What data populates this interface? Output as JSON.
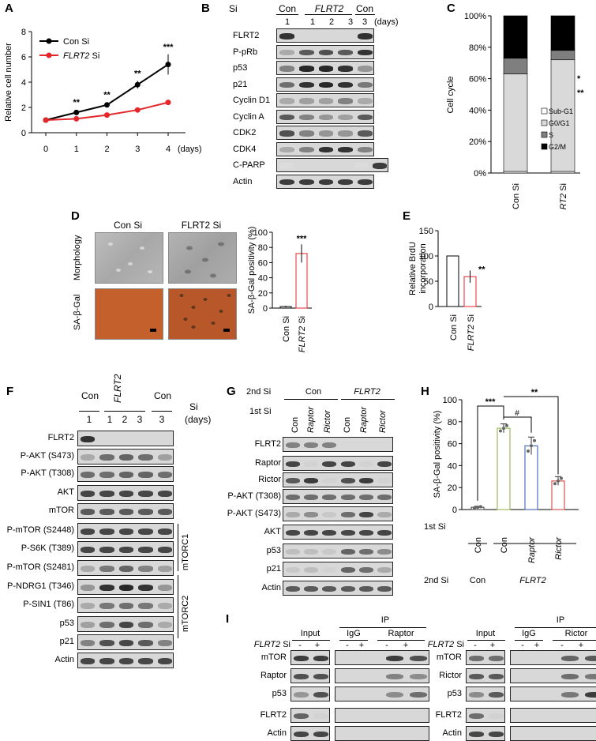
{
  "panels": {
    "A": "A",
    "B": "B",
    "C": "C",
    "D": "D",
    "E": "E",
    "F": "F",
    "G": "G",
    "H": "H",
    "I": "I"
  },
  "panelA": {
    "ylabel": "Relative cell number",
    "xunit": "(days)",
    "legend": [
      "Con Si",
      "FLRT2 Si"
    ],
    "legend_italic_part": "FLRT2",
    "x_ticks": [
      "0",
      "1",
      "2",
      "3",
      "4"
    ],
    "y_ticks": [
      "0",
      "2",
      "4",
      "6",
      "8"
    ],
    "sig": [
      "**",
      "**",
      "**",
      "***"
    ],
    "colors": {
      "con": "#000000",
      "flrt2": "#e5262a"
    }
  },
  "panelB": {
    "si_label": "Si",
    "groups": [
      "Con",
      "FLRT2",
      "Con"
    ],
    "days": [
      "1",
      "1",
      "2",
      "3",
      "3"
    ],
    "days_unit": "(days)",
    "rows": [
      "FLRT2",
      "P-pRb",
      "p53",
      "p21",
      "Cyclin D1",
      "Cyclin A",
      "CDK2",
      "CDK4",
      "C-PARP",
      "Actin"
    ]
  },
  "panelC": {
    "ylabel": "Cell cycle",
    "y_ticks": [
      "0%",
      "20%",
      "40%",
      "60%",
      "80%",
      "100%"
    ],
    "categories": [
      "Con Si",
      "FLRT2 Si"
    ],
    "legend": [
      "Sub-G1",
      "G0/G1",
      "S",
      "G2/M"
    ],
    "sig": [
      "*",
      "**"
    ]
  },
  "panelD": {
    "cols": [
      "Con Si",
      "FLRT2 Si"
    ],
    "rows": [
      "Morphology",
      "SA-β-Gal"
    ],
    "ylabel": "SA-β-Gal positivity (%)",
    "y_ticks": [
      "0",
      "20",
      "40",
      "60",
      "80",
      "100"
    ],
    "categories": [
      "Con Si",
      "FLRT2 Si"
    ],
    "sig": "***"
  },
  "panelE": {
    "ylabel": "Relative BrdU incorporation",
    "y_ticks": [
      "0",
      "50",
      "100",
      "150"
    ],
    "categories": [
      "Con Si",
      "FLRT2 Si"
    ],
    "sig": "**"
  },
  "panelF": {
    "si_label": "Si",
    "groups": [
      "Con",
      "FLRT2",
      "Con"
    ],
    "days": [
      "1",
      "1",
      "2",
      "3",
      "3"
    ],
    "days_unit": "(days)",
    "rows": [
      "FLRT2",
      "P-AKT (S473)",
      "P-AKT (T308)",
      "AKT",
      "mTOR",
      "P-mTOR (S2448)",
      "P-S6K (T389)",
      "P-mTOR (S2481)",
      "P-NDRG1 (T346)",
      "P-SIN1 (T86)",
      "p53",
      "p21",
      "Actin"
    ],
    "complex1": "mTORC1",
    "complex2": "mTORC2"
  },
  "panelG": {
    "second_si": "2nd Si",
    "first_si": "1st Si",
    "groups": [
      "Con",
      "FLRT2"
    ],
    "lanes": [
      "Con",
      "Raptor",
      "Rictor",
      "Con",
      "Raptor",
      "Rictor"
    ],
    "rows": [
      "FLRT2",
      "Raptor",
      "Rictor",
      "P-AKT (T308)",
      "P-AKT (S473)",
      "AKT",
      "p53",
      "p21",
      "Actin"
    ]
  },
  "panelH": {
    "ylabel": "SA-β-Gal positivity (%)",
    "y_ticks": [
      "0",
      "20",
      "40",
      "60",
      "80",
      "100"
    ],
    "first_si_label": "1st Si",
    "second_si_label": "2nd Si",
    "first_si": [
      "Con",
      "Con",
      "Raptor",
      "Rictor"
    ],
    "second_si": [
      "Con",
      "FLRT2"
    ],
    "sig": [
      "***",
      "#",
      "**"
    ],
    "colors": [
      "#555555",
      "#9bbb59",
      "#4f6fbf",
      "#d9534f"
    ]
  },
  "panelI": {
    "si_label": "FLRT2 Si",
    "input": "Input",
    "ip": "IP",
    "igg": "IgG",
    "raptor": "Raptor",
    "rictor": "Rictor",
    "signs": [
      "-",
      "+",
      "-",
      "+",
      "-",
      "+"
    ],
    "rows": [
      "mTOR",
      "Raptor",
      "p53",
      "FLRT2",
      "Actin"
    ],
    "rows_right": [
      "mTOR",
      "Rictor",
      "p53",
      "FLRT2",
      "Actin"
    ]
  },
  "chart_data": [
    {
      "type": "line",
      "x": [
        0,
        1,
        2,
        3,
        4
      ],
      "series": [
        {
          "name": "Con Si",
          "values": [
            1.0,
            1.6,
            2.2,
            3.8,
            5.4
          ],
          "err": [
            0.15,
            0.2,
            0.2,
            0.3,
            0.8
          ]
        },
        {
          "name": "FLRT2 Si",
          "values": [
            1.0,
            1.1,
            1.4,
            1.8,
            2.4
          ],
          "err": [
            0.15,
            0.15,
            0.15,
            0.15,
            0.2
          ]
        }
      ],
      "xlabel": "(days)",
      "ylabel": "Relative cell number",
      "ylim": [
        0,
        8
      ]
    },
    {
      "type": "bar",
      "categories": [
        "Con Si",
        "FLRT2 Si"
      ],
      "series": [
        {
          "name": "Sub-G1",
          "values": [
            1,
            1
          ]
        },
        {
          "name": "G0/G1",
          "values": [
            62,
            71
          ]
        },
        {
          "name": "S",
          "values": [
            10,
            6
          ]
        },
        {
          "name": "G2/M",
          "values": [
            27,
            22
          ]
        }
      ],
      "ylabel": "Cell cycle",
      "ylim": [
        0,
        100
      ]
    },
    {
      "type": "bar",
      "categories": [
        "Con Si",
        "FLRT2 Si"
      ],
      "values": [
        2,
        72
      ],
      "err": [
        1,
        12
      ],
      "ylabel": "SA-β-Gal positivity (%)",
      "ylim": [
        0,
        100
      ]
    },
    {
      "type": "bar",
      "categories": [
        "Con Si",
        "FLRT2 Si"
      ],
      "values": [
        100,
        59
      ],
      "err": [
        0,
        12
      ],
      "ylabel": "Relative BrdU incorporation",
      "ylim": [
        0,
        150
      ]
    },
    {
      "type": "bar",
      "categories": [
        "Con/Con",
        "FLRT2/Con",
        "FLRT2/Raptor",
        "FLRT2/Rictor"
      ],
      "values": [
        2,
        74,
        58,
        26
      ],
      "err": [
        1,
        4,
        8,
        4
      ],
      "ylabel": "SA-β-Gal positivity (%)",
      "ylim": [
        0,
        100
      ]
    }
  ]
}
